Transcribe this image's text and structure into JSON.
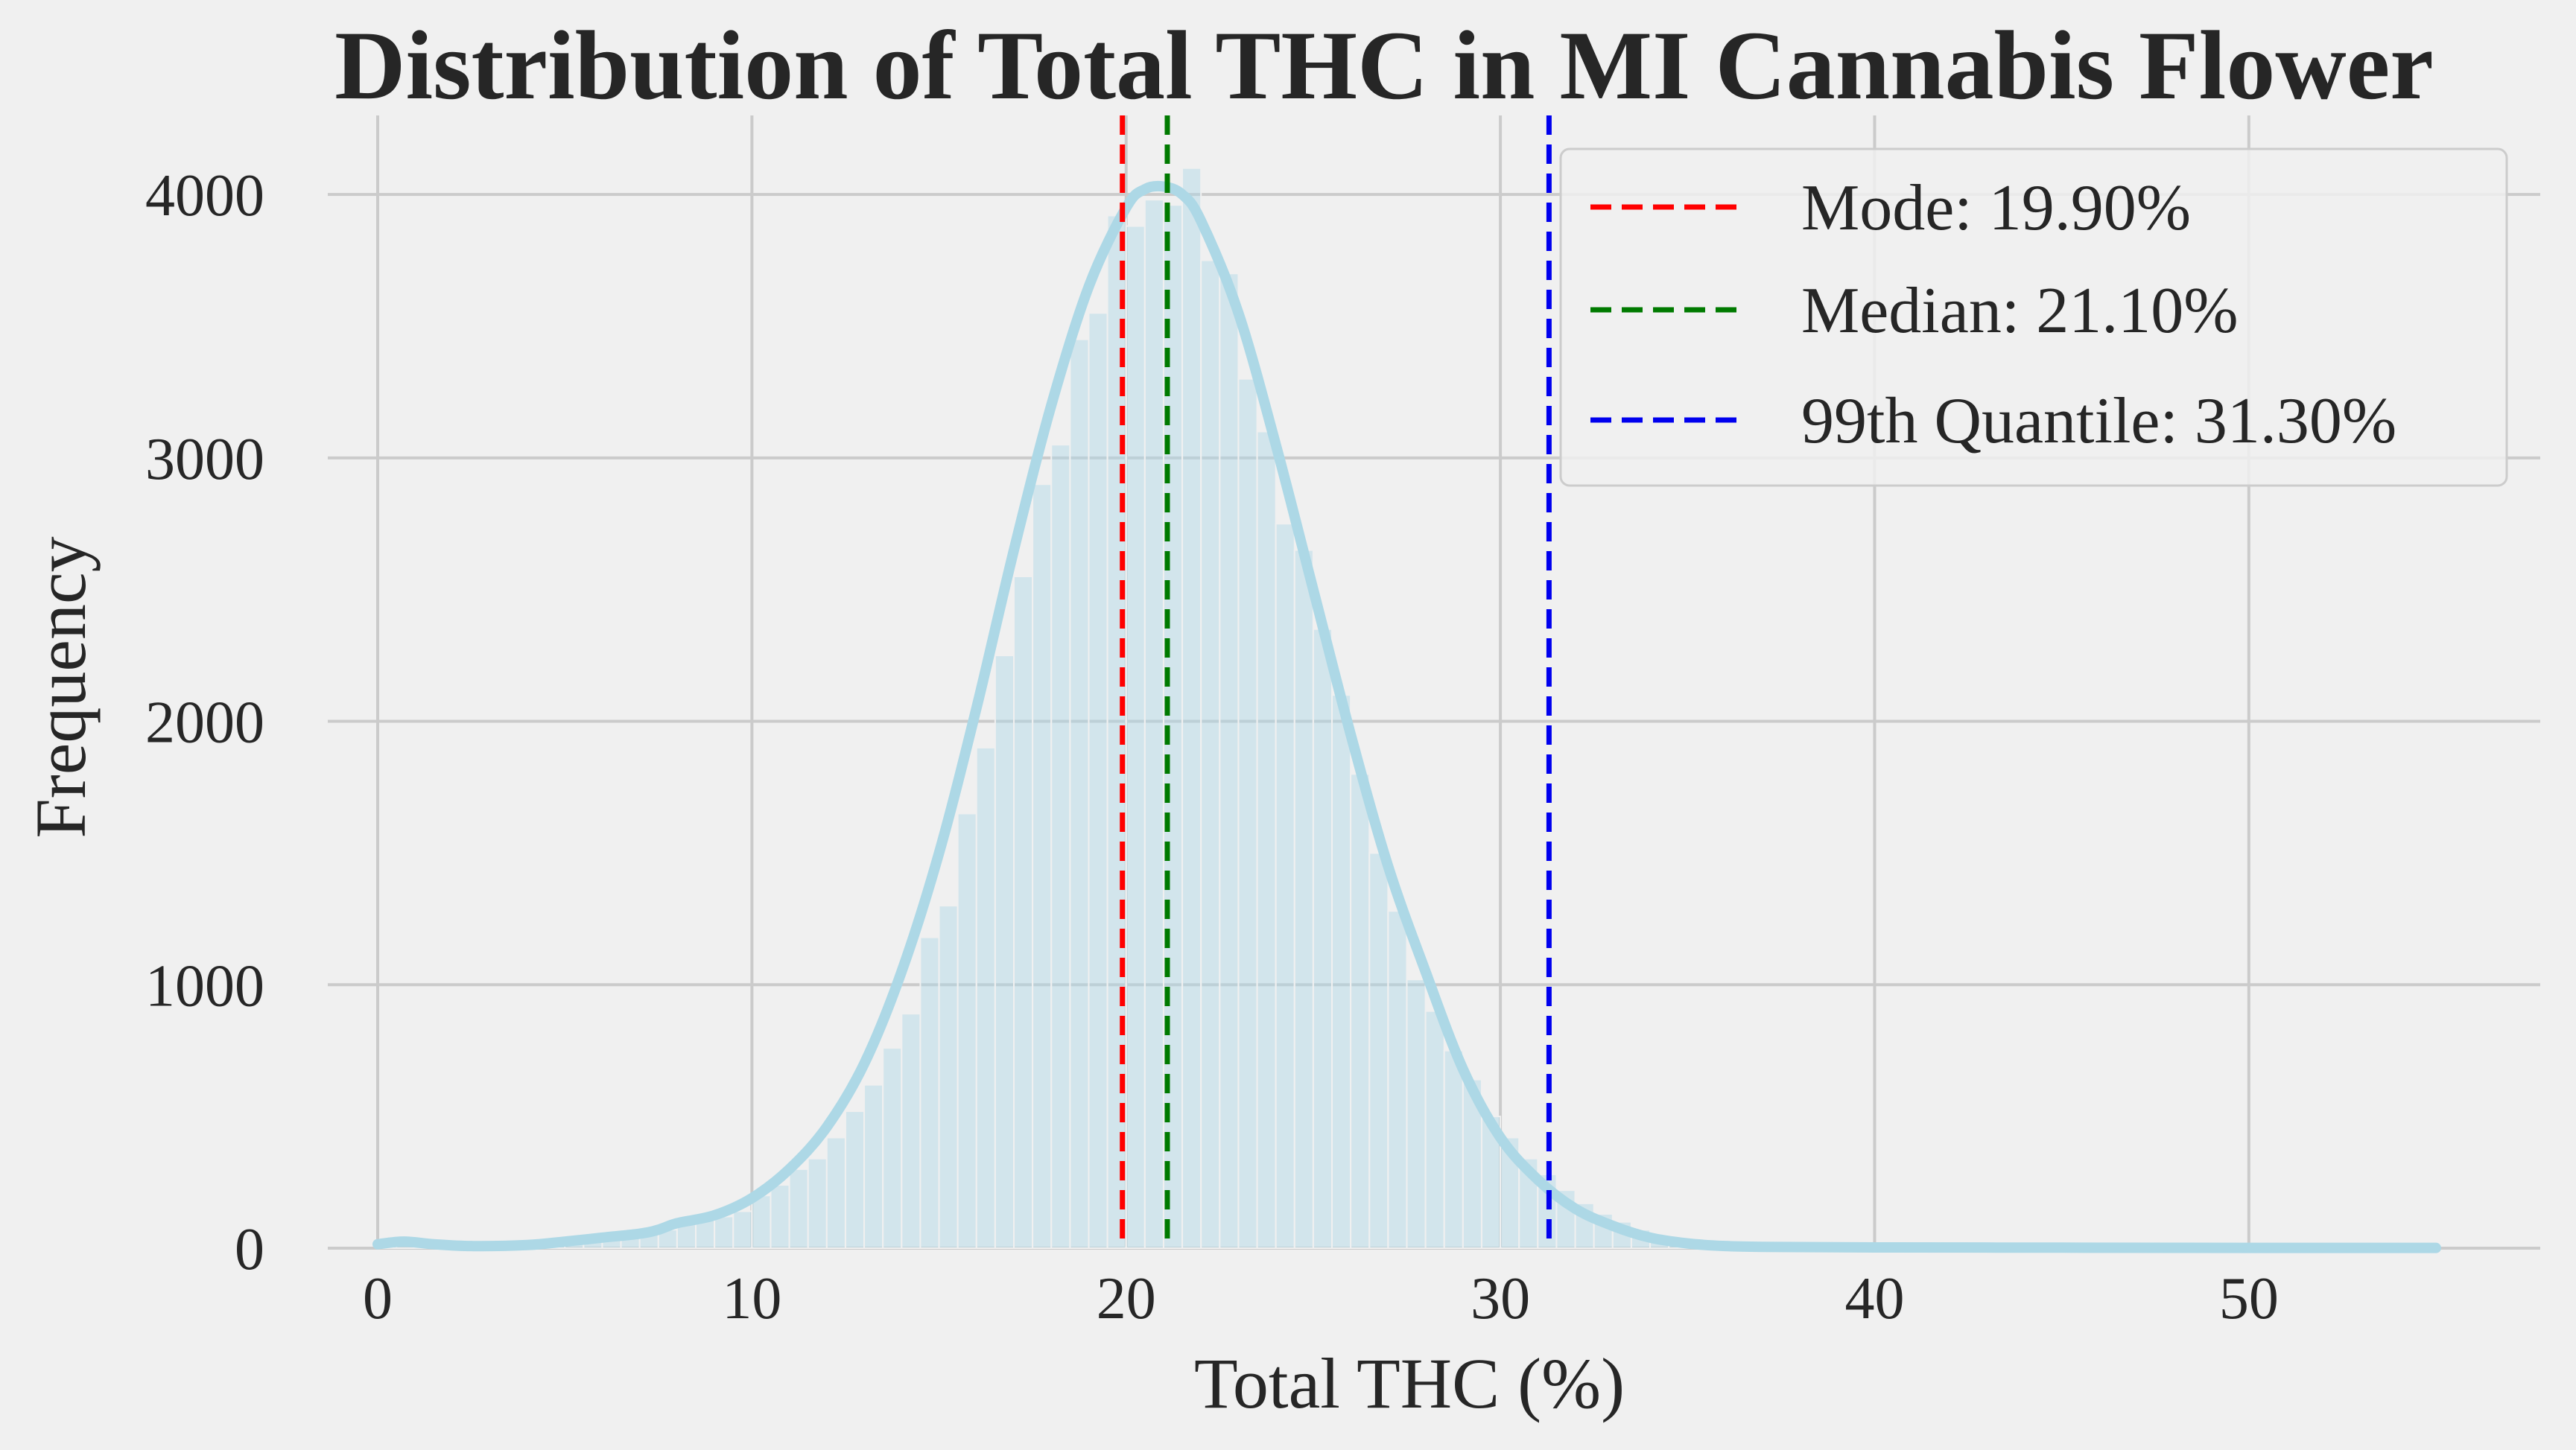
{
  "chart_data": {
    "type": "bar",
    "title": "Distribution of Total THC in MI Cannabis Flower",
    "xlabel": "Total THC (%)",
    "ylabel": "Frequency",
    "xlim": [
      0,
      55
    ],
    "ylim": [
      0,
      4300
    ],
    "xticks": [
      0,
      10,
      20,
      30,
      40,
      50
    ],
    "yticks": [
      0,
      1000,
      2000,
      3000,
      4000
    ],
    "grid": true,
    "legend_position": "top-right",
    "bin_width": 0.5,
    "histogram_bins": [
      {
        "x": 0.0,
        "y": 25
      },
      {
        "x": 0.5,
        "y": 10
      },
      {
        "x": 1.0,
        "y": 8
      },
      {
        "x": 1.5,
        "y": 6
      },
      {
        "x": 2.0,
        "y": 5
      },
      {
        "x": 2.5,
        "y": 5
      },
      {
        "x": 3.0,
        "y": 6
      },
      {
        "x": 3.5,
        "y": 8
      },
      {
        "x": 4.0,
        "y": 12
      },
      {
        "x": 4.5,
        "y": 18
      },
      {
        "x": 5.0,
        "y": 25
      },
      {
        "x": 5.5,
        "y": 30
      },
      {
        "x": 6.0,
        "y": 35
      },
      {
        "x": 6.5,
        "y": 45
      },
      {
        "x": 7.0,
        "y": 55
      },
      {
        "x": 7.5,
        "y": 70
      },
      {
        "x": 8.0,
        "y": 90
      },
      {
        "x": 8.5,
        "y": 110
      },
      {
        "x": 9.0,
        "y": 120
      },
      {
        "x": 9.5,
        "y": 140
      },
      {
        "x": 10.0,
        "y": 200
      },
      {
        "x": 10.5,
        "y": 240
      },
      {
        "x": 11.0,
        "y": 300
      },
      {
        "x": 11.5,
        "y": 340
      },
      {
        "x": 12.0,
        "y": 420
      },
      {
        "x": 12.5,
        "y": 520
      },
      {
        "x": 13.0,
        "y": 620
      },
      {
        "x": 13.5,
        "y": 760
      },
      {
        "x": 14.0,
        "y": 890
      },
      {
        "x": 14.5,
        "y": 1180
      },
      {
        "x": 15.0,
        "y": 1300
      },
      {
        "x": 15.5,
        "y": 1650
      },
      {
        "x": 16.0,
        "y": 1900
      },
      {
        "x": 16.5,
        "y": 2250
      },
      {
        "x": 17.0,
        "y": 2550
      },
      {
        "x": 17.5,
        "y": 2900
      },
      {
        "x": 18.0,
        "y": 3050
      },
      {
        "x": 18.5,
        "y": 3450
      },
      {
        "x": 19.0,
        "y": 3550
      },
      {
        "x": 19.5,
        "y": 3920
      },
      {
        "x": 20.0,
        "y": 3880
      },
      {
        "x": 20.5,
        "y": 3980
      },
      {
        "x": 21.0,
        "y": 3960
      },
      {
        "x": 21.5,
        "y": 4100
      },
      {
        "x": 22.0,
        "y": 3750
      },
      {
        "x": 22.5,
        "y": 3700
      },
      {
        "x": 23.0,
        "y": 3300
      },
      {
        "x": 23.5,
        "y": 3100
      },
      {
        "x": 24.0,
        "y": 2750
      },
      {
        "x": 24.5,
        "y": 2650
      },
      {
        "x": 25.0,
        "y": 2350
      },
      {
        "x": 25.5,
        "y": 2100
      },
      {
        "x": 26.0,
        "y": 1800
      },
      {
        "x": 26.5,
        "y": 1500
      },
      {
        "x": 27.0,
        "y": 1280
      },
      {
        "x": 27.5,
        "y": 1020
      },
      {
        "x": 28.0,
        "y": 900
      },
      {
        "x": 28.5,
        "y": 750
      },
      {
        "x": 29.0,
        "y": 640
      },
      {
        "x": 29.5,
        "y": 500
      },
      {
        "x": 30.0,
        "y": 420
      },
      {
        "x": 30.5,
        "y": 340
      },
      {
        "x": 31.0,
        "y": 280
      },
      {
        "x": 31.5,
        "y": 220
      },
      {
        "x": 32.0,
        "y": 170
      },
      {
        "x": 32.5,
        "y": 130
      },
      {
        "x": 33.0,
        "y": 100
      },
      {
        "x": 33.5,
        "y": 70
      },
      {
        "x": 34.0,
        "y": 50
      },
      {
        "x": 34.5,
        "y": 35
      },
      {
        "x": 35.0,
        "y": 25
      },
      {
        "x": 35.5,
        "y": 18
      },
      {
        "x": 36.0,
        "y": 12
      },
      {
        "x": 36.5,
        "y": 9
      },
      {
        "x": 37.0,
        "y": 7
      },
      {
        "x": 37.5,
        "y": 5
      },
      {
        "x": 38.0,
        "y": 4
      },
      {
        "x": 38.5,
        "y": 3
      },
      {
        "x": 39.0,
        "y": 3
      },
      {
        "x": 39.5,
        "y": 2
      },
      {
        "x": 40.0,
        "y": 2
      },
      {
        "x": 41.0,
        "y": 1
      },
      {
        "x": 42.0,
        "y": 1
      },
      {
        "x": 44.0,
        "y": 1
      },
      {
        "x": 46.0,
        "y": 1
      },
      {
        "x": 50.0,
        "y": 1
      },
      {
        "x": 54.5,
        "y": 1
      }
    ],
    "kde_curve": [
      {
        "x": 0,
        "y": 15
      },
      {
        "x": 0.7,
        "y": 25
      },
      {
        "x": 1.5,
        "y": 15
      },
      {
        "x": 2.5,
        "y": 8
      },
      {
        "x": 4,
        "y": 12
      },
      {
        "x": 5,
        "y": 25
      },
      {
        "x": 6,
        "y": 40
      },
      {
        "x": 7,
        "y": 55
      },
      {
        "x": 7.5,
        "y": 70
      },
      {
        "x": 8,
        "y": 95
      },
      {
        "x": 9,
        "y": 125
      },
      {
        "x": 10,
        "y": 190
      },
      {
        "x": 11,
        "y": 300
      },
      {
        "x": 12,
        "y": 460
      },
      {
        "x": 13,
        "y": 700
      },
      {
        "x": 14,
        "y": 1050
      },
      {
        "x": 15,
        "y": 1500
      },
      {
        "x": 16,
        "y": 2050
      },
      {
        "x": 17,
        "y": 2650
      },
      {
        "x": 18,
        "y": 3200
      },
      {
        "x": 19,
        "y": 3650
      },
      {
        "x": 20,
        "y": 3950
      },
      {
        "x": 20.5,
        "y": 4020
      },
      {
        "x": 21,
        "y": 4030
      },
      {
        "x": 21.5,
        "y": 4000
      },
      {
        "x": 22,
        "y": 3900
      },
      {
        "x": 23,
        "y": 3550
      },
      {
        "x": 24,
        "y": 3050
      },
      {
        "x": 25,
        "y": 2500
      },
      {
        "x": 26,
        "y": 1950
      },
      {
        "x": 27,
        "y": 1450
      },
      {
        "x": 28,
        "y": 1050
      },
      {
        "x": 29,
        "y": 680
      },
      {
        "x": 30,
        "y": 420
      },
      {
        "x": 31,
        "y": 260
      },
      {
        "x": 32,
        "y": 150
      },
      {
        "x": 33,
        "y": 85
      },
      {
        "x": 34,
        "y": 40
      },
      {
        "x": 35,
        "y": 18
      },
      {
        "x": 36,
        "y": 8
      },
      {
        "x": 37,
        "y": 5
      },
      {
        "x": 40,
        "y": 3
      },
      {
        "x": 45,
        "y": 2
      },
      {
        "x": 50,
        "y": 1
      },
      {
        "x": 55,
        "y": 1
      }
    ],
    "reference_lines": [
      {
        "name": "Mode: 19.90%",
        "x": 19.9,
        "color": "#ff0000",
        "style": "dashed"
      },
      {
        "name": "Median: 21.10%",
        "x": 21.1,
        "color": "#007a00",
        "style": "dashed"
      },
      {
        "name": "99th Quantile: 31.30%",
        "x": 31.3,
        "color": "#0000ee",
        "style": "dashed"
      }
    ],
    "colors": {
      "background": "#f0f0f0",
      "grid": "#cbcbcb",
      "bar_fill": "#add8e6",
      "bar_edge": "#f0f0f0",
      "kde_line": "#add8e6",
      "text": "#262626"
    }
  }
}
